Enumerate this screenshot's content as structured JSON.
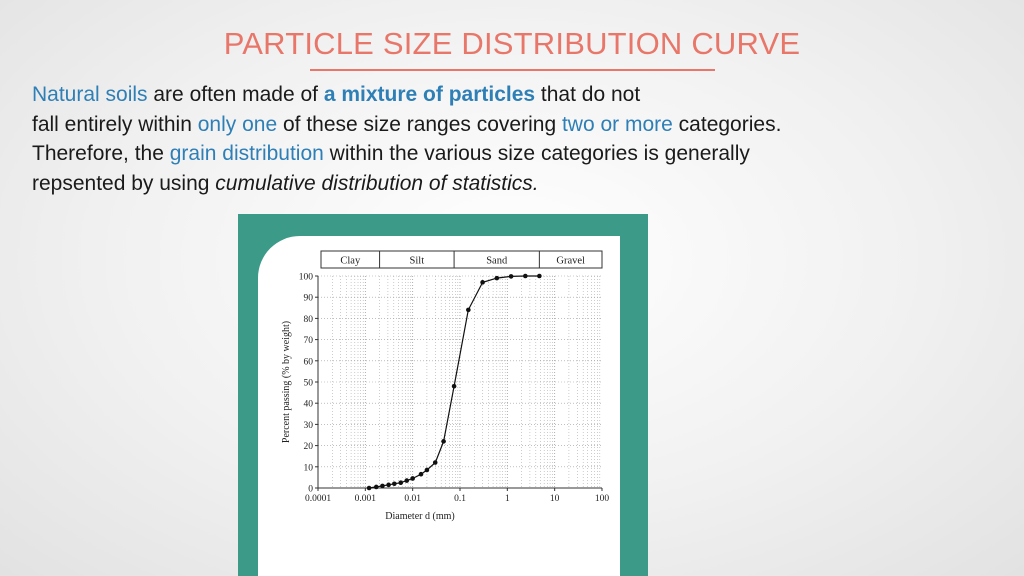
{
  "slide": {
    "title": "PARTICLE SIZE DISTRIBUTION CURVE",
    "accent_color": "#e8776a",
    "highlight_color": "#2e7fb6",
    "panel_color": "#3b9b88"
  },
  "paragraph": {
    "l1_a": "Natural soils",
    "l1_b": " are often made of ",
    "l1_c": "a mixture of particles",
    "l1_d": " that do not",
    "l2_a": "fall entirely within ",
    "l2_b": "only one",
    "l2_c": " of these size ranges covering ",
    "l2_d": "two or more",
    "l2_e": " categories.",
    "l3_a": "Therefore, the ",
    "l3_b": "grain distribution",
    "l3_c": " within the various size categories is generally",
    "l4_a": "repsented by using ",
    "l4_b": "cumulative distribution of statistics."
  },
  "chart_data": {
    "type": "line",
    "title": "",
    "xlabel": "Diameter d (mm)",
    "ylabel": "Percent passing (% by weight)",
    "x_scale": "log",
    "xlim": [
      0.0001,
      100
    ],
    "ylim": [
      0,
      100
    ],
    "x_ticks": [
      "0.0001",
      "0.001",
      "0.01",
      "0.1",
      "1",
      "10",
      "100"
    ],
    "y_ticks": [
      "0",
      "10",
      "20",
      "30",
      "40",
      "50",
      "60",
      "70",
      "80",
      "90",
      "100"
    ],
    "grid": true,
    "size_bands": [
      "Clay",
      "Silt",
      "Sand",
      "Gravel"
    ],
    "series": [
      {
        "x": [
          0.0012,
          0.0017,
          0.0023,
          0.0031,
          0.0041,
          0.0056,
          0.0075,
          0.01,
          0.015,
          0.02,
          0.03,
          0.045,
          0.075,
          0.15,
          0.3,
          0.6,
          1.2,
          2.4,
          4.75
        ],
        "y": [
          0,
          0.5,
          1,
          1.5,
          2,
          2.5,
          3.5,
          4.5,
          6.5,
          8.5,
          12,
          22,
          48,
          84,
          97,
          99,
          99.8,
          100,
          100
        ]
      }
    ]
  }
}
